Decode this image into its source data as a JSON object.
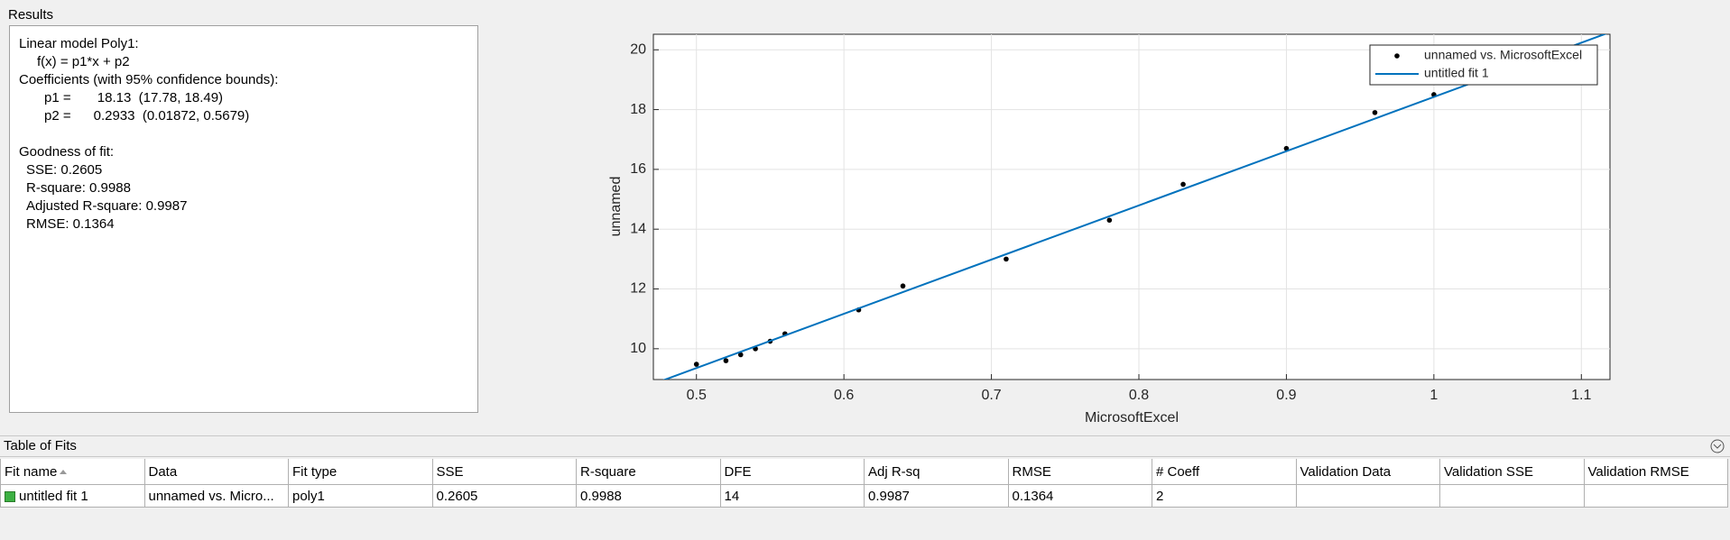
{
  "results": {
    "title": "Results",
    "lines": [
      "Linear model Poly1:",
      "f(x) = p1*x + p2",
      "Coefficients (with 95% confidence bounds):",
      "p1 =       18.13  (17.78, 18.49)",
      "p2 =      0.2933  (0.01872, 0.5679)",
      "Goodness of fit:",
      "SSE: 0.2605",
      "R-square: 0.9988",
      "Adjusted R-square: 0.9987",
      "RMSE: 0.1364"
    ]
  },
  "chart_data": {
    "type": "scatter",
    "xlabel": "MicrosoftExcel",
    "ylabel": "unnamed",
    "xlim": [
      0.4708,
      1.1194
    ],
    "ylim": [
      8.97,
      20.52
    ],
    "xticks": [
      0.5,
      0.6,
      0.7,
      0.8,
      0.9,
      1,
      1.1
    ],
    "yticks": [
      10,
      12,
      14,
      16,
      18,
      20
    ],
    "grid": true,
    "legend": "top-right",
    "series": [
      {
        "name": "unnamed vs. MicrosoftExcel",
        "type": "scatter",
        "color": "#000000",
        "x": [
          0.5,
          0.52,
          0.53,
          0.54,
          0.55,
          0.56,
          0.61,
          0.64,
          0.71,
          0.78,
          0.83,
          0.9,
          0.96,
          1.0
        ],
        "values": [
          9.48,
          9.6,
          9.8,
          10.0,
          10.25,
          10.5,
          11.3,
          12.1,
          13.0,
          14.3,
          15.5,
          16.7,
          17.9,
          18.5
        ]
      },
      {
        "name": "untitled fit 1",
        "type": "line",
        "color": "#0072bd",
        "x": [
          0.47,
          1.12
        ],
        "values": [
          8.81,
          20.6
        ]
      }
    ]
  },
  "table": {
    "title": "Table of Fits",
    "columns": [
      "Fit name",
      "Data",
      "Fit type",
      "SSE",
      "R-square",
      "DFE",
      "Adj R-sq",
      "RMSE",
      "# Coeff",
      "Validation Data",
      "Validation SSE",
      "Validation RMSE"
    ],
    "rows": [
      [
        "untitled fit 1",
        "unnamed vs. Micro...",
        "poly1",
        "0.2605",
        "0.9988",
        "14",
        "0.9987",
        "0.1364",
        "2",
        "",
        "",
        ""
      ]
    ]
  }
}
